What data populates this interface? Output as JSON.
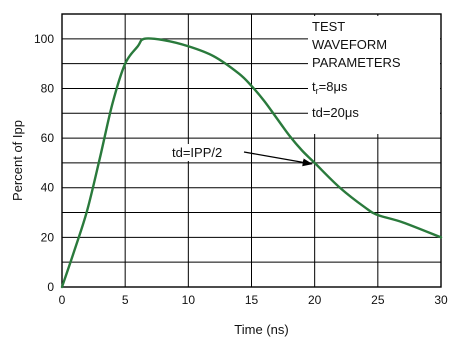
{
  "chart_data": {
    "type": "line",
    "xlabel": "Time  (ns)",
    "ylabel": "Percent of Ipp",
    "xlim": [
      0,
      30
    ],
    "ylim": [
      0,
      110
    ],
    "x_ticks": [
      0,
      5,
      10,
      15,
      20,
      25,
      30
    ],
    "y_ticks": [
      0,
      20,
      40,
      60,
      80,
      100
    ],
    "grid": true,
    "line_color": "#2a7a3c",
    "series": [
      {
        "x": [
          0,
          1,
          2,
          3,
          4,
          5,
          6,
          6.5,
          8,
          10,
          12,
          14,
          15,
          16,
          17,
          18,
          19,
          20,
          22,
          24,
          25,
          27,
          30
        ],
        "y": [
          0,
          15,
          31,
          52,
          74,
          90,
          97,
          100,
          99.5,
          97,
          93,
          86,
          81,
          75,
          68,
          61,
          55,
          50,
          40,
          32,
          29,
          26,
          20
        ]
      }
    ],
    "legend_box": {
      "lines": [
        "TEST",
        "WAVEFORM",
        "PARAMETERS"
      ],
      "params": [
        {
          "main": "t",
          "sub": "r",
          "rest": "=8μs"
        },
        {
          "main": "td=20μs"
        }
      ]
    },
    "annotation": {
      "text": "td=IPP/2",
      "points_to": {
        "x": 20,
        "y": 50
      }
    }
  }
}
